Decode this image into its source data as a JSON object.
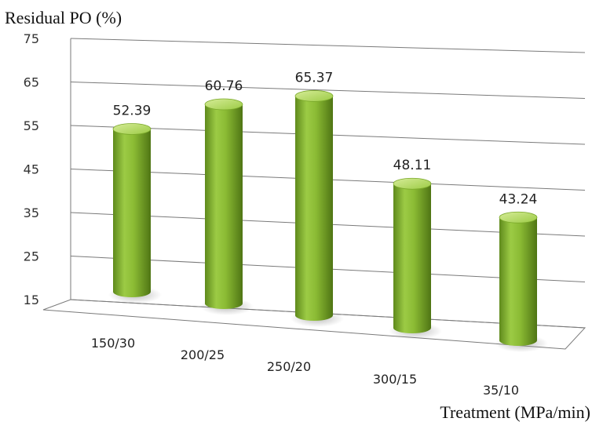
{
  "chart_data": {
    "type": "bar",
    "style": "3d-cylinder",
    "ylabel": "Residual PO (%)",
    "xlabel": "Treatment (MPa/min)",
    "categories": [
      "150/30",
      "200/25",
      "250/20",
      "300/15",
      "35/10"
    ],
    "values": [
      52.39,
      60.76,
      65.37,
      48.11,
      43.24
    ],
    "value_labels": [
      "52.39",
      "60.76",
      "65.37",
      "48.11",
      "43.24"
    ],
    "ylim": [
      15,
      75
    ],
    "yticks": [
      15,
      25,
      35,
      45,
      55,
      65,
      75
    ],
    "ytick_labels": [
      "15",
      "25",
      "35",
      "45",
      "55",
      "65",
      "75"
    ],
    "grid": true,
    "legend": "none",
    "colors": {
      "bar_light": "#c4e07a",
      "bar_mid": "#8bbb34",
      "bar_dark": "#4f7514",
      "grid": "#7a7a7a"
    }
  }
}
